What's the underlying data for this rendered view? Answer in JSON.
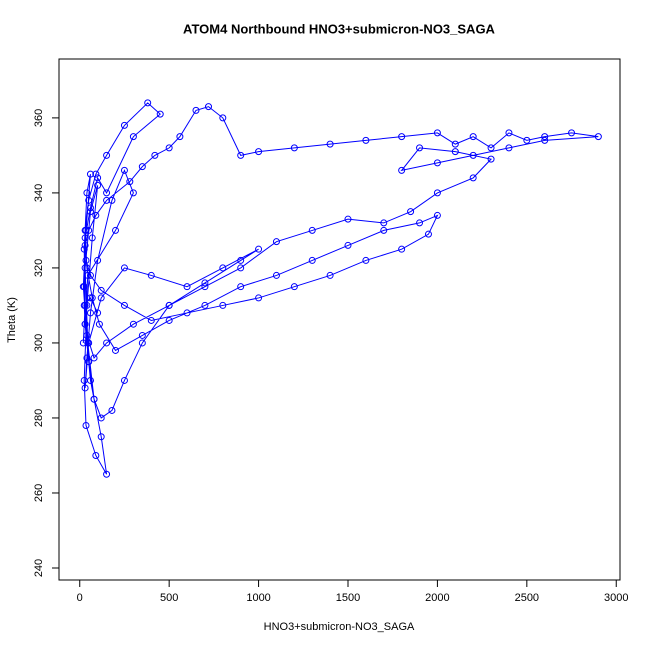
{
  "chart_data": {
    "type": "line",
    "title": "ATOM4 Northbound HNO3+submicron-NO3_SAGA",
    "xlabel": "HNO3+submicron-NO3_SAGA",
    "ylabel": "Theta (K)",
    "color": "#0000ff",
    "marker": "circle",
    "x": [
      20,
      30,
      25,
      40,
      60,
      35,
      20,
      50,
      80,
      45,
      30,
      60,
      100,
      70,
      40,
      25,
      35,
      90,
      150,
      120,
      60,
      30,
      45,
      200,
      300,
      250,
      180,
      100,
      60,
      40,
      30,
      50,
      120,
      250,
      400,
      600,
      800,
      1000,
      900,
      700,
      500,
      300,
      150,
      80,
      40,
      25,
      30,
      60,
      100,
      150,
      300,
      450,
      380,
      250,
      150,
      90,
      50,
      30,
      40,
      70,
      110,
      200,
      350,
      500,
      700,
      900,
      1100,
      1300,
      1500,
      1700,
      1900,
      2000,
      1950,
      1800,
      1600,
      1400,
      1200,
      1000,
      800,
      600,
      400,
      250,
      120,
      60,
      35,
      30,
      50,
      90,
      150,
      280,
      350,
      420,
      500,
      560,
      650,
      720,
      800,
      900,
      1000,
      1200,
      1400,
      1600,
      1800,
      2000,
      2100,
      2200,
      2300,
      2400,
      2500,
      2600,
      2750,
      2900,
      2600,
      2400,
      2200,
      2000,
      1800,
      1900,
      2100,
      2300,
      2200,
      2000,
      1850,
      1700,
      1500,
      1300,
      1100,
      900,
      700,
      500,
      350,
      250,
      180,
      120,
      80,
      50,
      30,
      25,
      60,
      100
    ],
    "values": [
      300,
      310,
      325,
      340,
      345,
      330,
      315,
      295,
      285,
      300,
      320,
      335,
      342,
      328,
      310,
      290,
      278,
      270,
      265,
      275,
      290,
      305,
      318,
      330,
      340,
      346,
      338,
      322,
      308,
      296,
      288,
      300,
      312,
      320,
      318,
      315,
      320,
      325,
      322,
      316,
      310,
      305,
      300,
      296,
      302,
      315,
      328,
      336,
      344,
      340,
      355,
      361,
      364,
      358,
      350,
      345,
      338,
      330,
      320,
      312,
      305,
      298,
      302,
      306,
      310,
      315,
      318,
      322,
      326,
      330,
      332,
      334,
      329,
      325,
      322,
      318,
      315,
      312,
      310,
      308,
      306,
      310,
      314,
      318,
      322,
      326,
      330,
      334,
      338,
      343,
      347,
      350,
      352,
      355,
      362,
      363,
      360,
      350,
      351,
      352,
      353,
      354,
      355,
      356,
      353,
      355,
      352,
      356,
      354,
      355,
      356,
      355,
      354,
      352,
      350,
      348,
      346,
      352,
      351,
      349,
      344,
      340,
      335,
      332,
      333,
      330,
      327,
      320,
      315,
      310,
      300,
      290,
      282,
      280,
      285,
      295,
      305,
      310,
      312,
      308
    ],
    "xlim": [
      -116,
      3021
    ],
    "ylim": [
      236.8,
      375.7
    ],
    "xticks": [
      0,
      500,
      1000,
      1500,
      2000,
      2500,
      3000
    ],
    "yticks": [
      240,
      260,
      280,
      300,
      320,
      340,
      360
    ]
  }
}
